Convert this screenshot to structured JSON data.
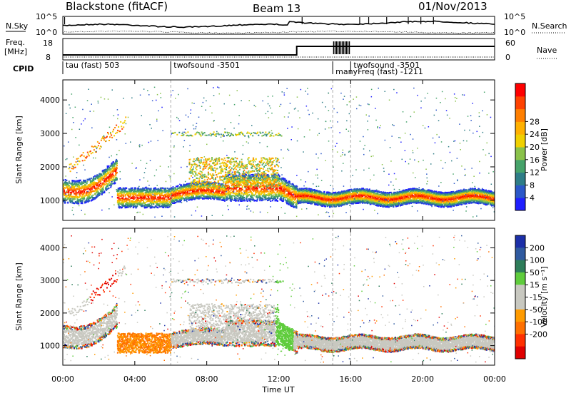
{
  "header": {
    "station": "Blackstone (fitACF)",
    "beam": "Beam 13",
    "date": "01/Nov/2013"
  },
  "sky_panel": {
    "label": "N.Sky",
    "right_label": "N.Search",
    "left_ticks": [
      "10^5",
      "10^0"
    ],
    "right_ticks": [
      "10^5",
      "10^0"
    ]
  },
  "freq_panel": {
    "label_line1": "Freq.",
    "label_line2": "[MHz]",
    "right_label": "Nave",
    "left_ticks": [
      "18",
      "8"
    ],
    "right_ticks": [
      "60",
      "0"
    ]
  },
  "cpid": {
    "label": "CPID",
    "segments": [
      {
        "start_ut": 0.0,
        "text": "tau (fast) 503"
      },
      {
        "start_ut": 6.0,
        "text": "twofsound -3501"
      },
      {
        "start_ut": 15.0,
        "text": "manyFreq (fast) -1211"
      },
      {
        "start_ut": 16.0,
        "text": "twofsound -3501"
      }
    ]
  },
  "chart_data": [
    {
      "type": "heatmap",
      "name": "power",
      "ylabel": "Slant Range [km]",
      "yticks": [
        "1000",
        "2000",
        "3000",
        "4000"
      ],
      "ylim": [
        400,
        4600
      ],
      "colorbar_label": "Power [dB]",
      "colorbar_ticks": [
        "4",
        "8",
        "12",
        "16",
        "20",
        "24",
        "28"
      ],
      "colors": [
        "#1f1fff",
        "#2b57c8",
        "#2e7d87",
        "#46a36a",
        "#8ac24a",
        "#f0d000",
        "#ffb000",
        "#ff7f00",
        "#ff4200",
        "#ff0000"
      ]
    },
    {
      "type": "heatmap",
      "name": "velocity",
      "ylabel": "Slant Range [km]",
      "yticks": [
        "1000",
        "2000",
        "3000",
        "4000"
      ],
      "ylim": [
        400,
        4600
      ],
      "colorbar_label": "Velocity [m s⁻¹]",
      "colorbar_ticks": [
        "200",
        "100",
        "50",
        "15",
        "-15",
        "-50",
        "-100",
        "-200"
      ],
      "colors": [
        "#1c2fa8",
        "#2f5aa0",
        "#2e7d5a",
        "#5fcc3c",
        "#c8c8c0",
        "#c8c8c0",
        "#ff9b00",
        "#ff7000",
        "#ff3000",
        "#e00000"
      ]
    }
  ],
  "xaxis": {
    "label": "Time UT",
    "ticks": [
      "00:00",
      "04:00",
      "08:00",
      "12:00",
      "16:00",
      "20:00",
      "00:00"
    ]
  }
}
